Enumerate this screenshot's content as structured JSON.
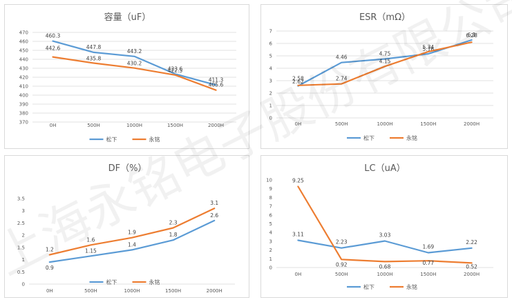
{
  "watermark": "上海永铭电子股份有限公司",
  "colors": {
    "matsushita": "#5B9BD5",
    "yongming": "#ED7D31"
  },
  "chart_data": [
    {
      "type": "line",
      "title": "容量（uF）",
      "categories": [
        "0H",
        "500H",
        "1000H",
        "1500H",
        "2000H"
      ],
      "ylim": [
        370,
        470
      ],
      "yticks": [
        "470",
        "460",
        "450",
        "440",
        "430",
        "420",
        "410",
        "400",
        "390",
        "380",
        "370"
      ],
      "grid": true,
      "legend": "bottom",
      "series": [
        {
          "name": "松下",
          "values": [
            460.3,
            447.8,
            443.2,
            423.6,
            411.3
          ],
          "labels": [
            "460.3",
            "447.8",
            "443.2",
            "423.6",
            "411.3"
          ]
        },
        {
          "name": "永铭",
          "values": [
            442.6,
            435.8,
            430.2,
            422.5,
            405.6
          ],
          "labels": [
            "442.6",
            "435.8",
            "430.2",
            "422.5",
            "405.6"
          ]
        }
      ]
    },
    {
      "type": "line",
      "title": "ESR（mΩ）",
      "categories": [
        "0H",
        "500H",
        "1000H",
        "1500H",
        "2000H"
      ],
      "ylim": [
        0,
        7
      ],
      "yticks": [
        "7",
        "6",
        "5",
        "4",
        "3",
        "2",
        "1",
        "0"
      ],
      "grid": true,
      "legend": "bottom",
      "series": [
        {
          "name": "松下",
          "values": [
            2.58,
            4.46,
            4.75,
            5.16,
            6.28
          ],
          "labels": [
            "2.58",
            "4.46",
            "4.75",
            "5.16",
            "6.28"
          ]
        },
        {
          "name": "永铭",
          "values": [
            2.62,
            2.74,
            4.15,
            5.34,
            6.1
          ],
          "labels": [
            "2.62",
            "2.74",
            "4.15",
            "5.34",
            "6.1"
          ]
        }
      ]
    },
    {
      "type": "line",
      "title": "DF（%）",
      "categories": [
        "0H",
        "500H",
        "1000H",
        "1500H",
        "2000H"
      ],
      "ylim": [
        0,
        3.5
      ],
      "yticks": [
        "3.5",
        "3",
        "2.5",
        "2",
        "1.5",
        "1",
        "0.5",
        "0"
      ],
      "grid": false,
      "legend": "bottom",
      "series": [
        {
          "name": "松下",
          "values": [
            0.9,
            1.15,
            1.4,
            1.8,
            2.6
          ],
          "labels": [
            "0.9",
            "1.15",
            "1.4",
            "1.8",
            "2.6"
          ]
        },
        {
          "name": "永铭",
          "values": [
            1.2,
            1.6,
            1.9,
            2.3,
            3.1
          ],
          "labels": [
            "1.2",
            "1.6",
            "1.9",
            "2.3",
            "3.1"
          ]
        }
      ]
    },
    {
      "type": "line",
      "title": "LC（uA）",
      "categories": [
        "0H",
        "500H",
        "1000H",
        "1500H",
        "2000H"
      ],
      "ylim": [
        0,
        10
      ],
      "yticks": [
        "10",
        "9",
        "8",
        "7",
        "6",
        "5",
        "4",
        "3",
        "2",
        "1",
        "0"
      ],
      "grid": false,
      "legend": "bottom",
      "series": [
        {
          "name": "松下",
          "values": [
            3.11,
            2.23,
            3.03,
            1.69,
            2.22
          ],
          "labels": [
            "3.11",
            "2.23",
            "3.03",
            "1.69",
            "2.22"
          ]
        },
        {
          "name": "永铭",
          "values": [
            9.25,
            0.92,
            0.68,
            0.77,
            0.52
          ],
          "labels": [
            "9.25",
            "0.92",
            "0.68",
            "0.77",
            "0.52"
          ]
        }
      ]
    }
  ]
}
